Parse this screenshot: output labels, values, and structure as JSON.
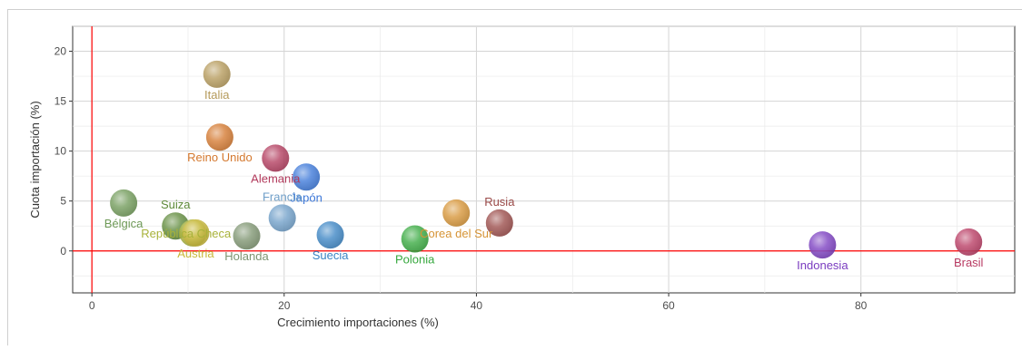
{
  "chart_data": {
    "type": "scatter",
    "title": "",
    "xlabel": "Crecimiento importaciones (%)",
    "ylabel": "Cuota importación (%)",
    "xlim": [
      -2,
      96
    ],
    "ylim": [
      -4.2,
      22.5
    ],
    "xticks": [
      0,
      20,
      40,
      60,
      80
    ],
    "yticks": [
      0,
      5,
      10,
      15,
      20
    ],
    "grid": true,
    "reference_lines": {
      "x": 0,
      "y": 0,
      "color": "#ff0000"
    },
    "points": [
      {
        "label": "Italia",
        "x": 13.0,
        "y": 17.7,
        "color": "#b59a5a",
        "label_pos": "below"
      },
      {
        "label": "Reino Unido",
        "x": 13.3,
        "y": 11.4,
        "color": "#d4782e",
        "label_pos": "below"
      },
      {
        "label": "Alemania",
        "x": 19.1,
        "y": 9.3,
        "color": "#b23a5c",
        "label_pos": "below"
      },
      {
        "label": "Japón",
        "x": 22.3,
        "y": 7.4,
        "color": "#3a76d8",
        "label_pos": "below"
      },
      {
        "label": "Francia",
        "x": 19.8,
        "y": 3.3,
        "color": "#6e9ec8",
        "label_pos": "above"
      },
      {
        "label": "Bélgica",
        "x": 3.3,
        "y": 4.8,
        "color": "#6f9a58",
        "label_pos": "below"
      },
      {
        "label": "Suiza",
        "x": 8.7,
        "y": 2.5,
        "color": "#5e8a3a",
        "label_pos": "above"
      },
      {
        "label": "República Checa",
        "x": 10.5,
        "y": 1.8,
        "color": "#a8b23a",
        "label_pos": "left"
      },
      {
        "label": "Austria",
        "x": 10.8,
        "y": 1.8,
        "color": "#c8b838",
        "label_pos": "below"
      },
      {
        "label": "Holanda",
        "x": 16.1,
        "y": 1.5,
        "color": "#7d9470",
        "label_pos": "below"
      },
      {
        "label": "Suecia",
        "x": 24.8,
        "y": 1.6,
        "color": "#3a84c4",
        "label_pos": "below"
      },
      {
        "label": "Polonia",
        "x": 33.6,
        "y": 1.2,
        "color": "#36a83e",
        "label_pos": "below"
      },
      {
        "label": "Corea del Sur",
        "x": 37.9,
        "y": 3.8,
        "color": "#d69436",
        "label_pos": "below"
      },
      {
        "label": "Rusia",
        "x": 42.4,
        "y": 2.8,
        "color": "#9a4a48",
        "label_pos": "above"
      },
      {
        "label": "Indonesia",
        "x": 76.0,
        "y": 0.6,
        "color": "#7a3cc0",
        "label_pos": "below"
      },
      {
        "label": "Brasil",
        "x": 91.2,
        "y": 0.9,
        "color": "#b83a62",
        "label_pos": "below"
      }
    ]
  }
}
